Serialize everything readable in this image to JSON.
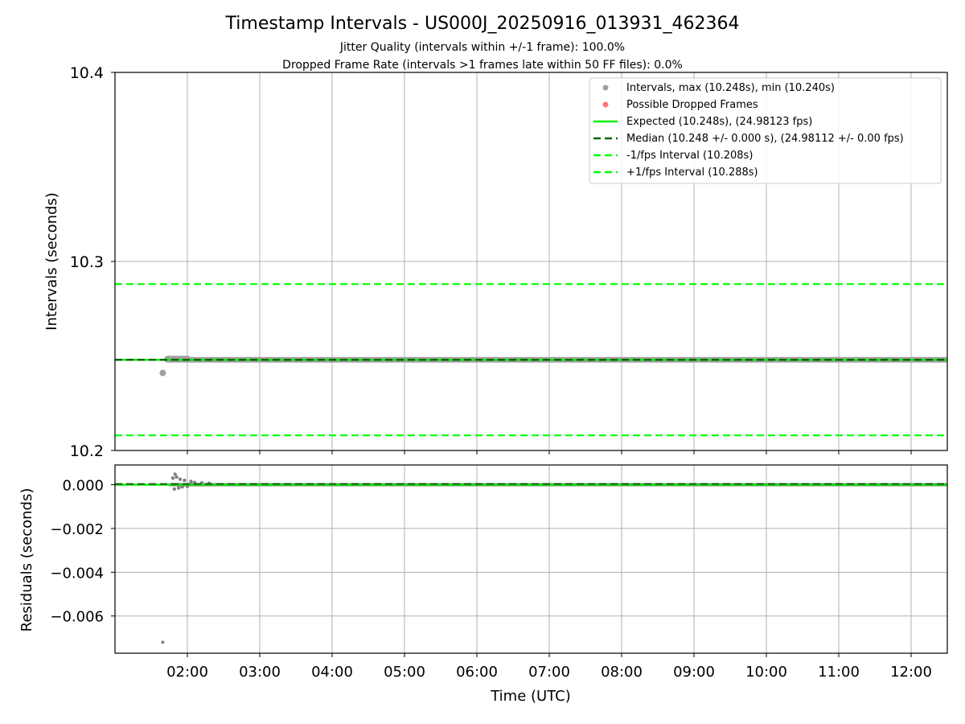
{
  "title": "Timestamp Intervals - US000J_20250916_013931_462364",
  "subtitle_jitter": "Jitter Quality (intervals within +/-1 frame): 100.0%",
  "subtitle_dropped": "Dropped Frame Rate (intervals >1 frames late within 50 FF files): 0.0%",
  "colors": {
    "intervals": "#a0a0a0",
    "dropped": "#ff5555",
    "expected": "#00ee00",
    "median": "#006400",
    "bounds": "#00ff00",
    "residuals": "#808080",
    "grid": "#b0b0b0"
  },
  "chart_data": [
    {
      "type": "scatter",
      "name": "intervals",
      "ylabel": "Intervals (seconds)",
      "ylim": [
        10.2,
        10.4
      ],
      "xlim_hours": [
        1.0,
        12.5
      ],
      "y_ticks": [
        "10.2",
        "10.3",
        "10.4"
      ],
      "grid": true,
      "legend_position": "top-right",
      "legend": [
        "Intervals, max (10.248s), min (10.240s)",
        "Possible Dropped Frames",
        "Expected (10.248s), (24.98123 fps)",
        "Median (10.248 +/- 0.000 s), (24.98112 +/- 0.00 fps)",
        "-1/fps Interval (10.208s)",
        "+1/fps Interval (10.288s)"
      ],
      "expected": 10.248,
      "median": 10.248,
      "lower_bound": 10.208,
      "upper_bound": 10.288,
      "series_range_hours": [
        1.66,
        12.5
      ],
      "outliers": [
        {
          "x_hours": 1.66,
          "y": 10.241
        }
      ]
    },
    {
      "type": "scatter",
      "name": "residuals",
      "xlabel": "Time (UTC)",
      "ylabel": "Residuals (seconds)",
      "ylim": [
        -0.0077,
        0.0009
      ],
      "xlim_hours": [
        1.0,
        12.5
      ],
      "x_ticks": [
        "02:00",
        "03:00",
        "04:00",
        "05:00",
        "06:00",
        "07:00",
        "08:00",
        "09:00",
        "10:00",
        "11:00",
        "12:00"
      ],
      "x_tick_hours": [
        2,
        3,
        4,
        5,
        6,
        7,
        8,
        9,
        10,
        11,
        12
      ],
      "y_ticks": [
        "0.000",
        "−0.002",
        "−0.004",
        "−0.006"
      ],
      "y_tick_values": [
        0.0,
        -0.002,
        -0.004,
        -0.006
      ],
      "grid": true,
      "expected": 0.0,
      "median": 3e-05,
      "outliers": [
        {
          "x_hours": 1.66,
          "y": -0.0072
        },
        {
          "x_hours": 1.83,
          "y": 0.00048
        }
      ]
    }
  ]
}
